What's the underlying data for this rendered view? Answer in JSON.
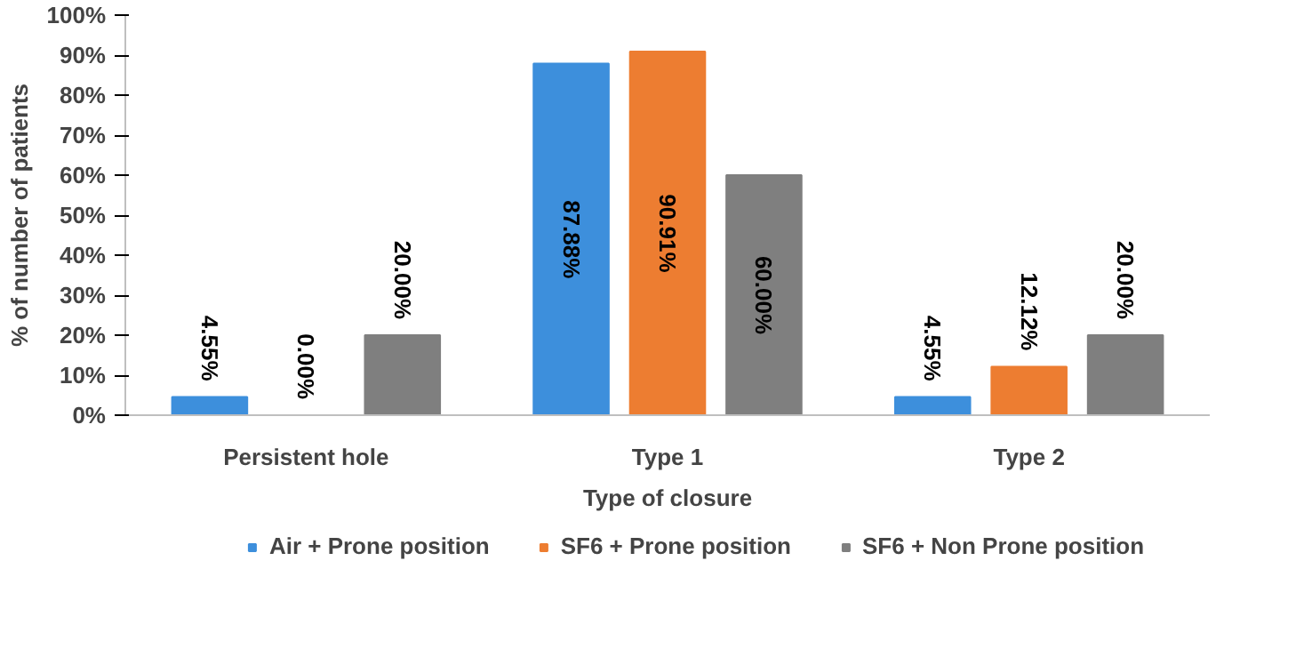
{
  "chart_data": {
    "type": "bar",
    "xlabel": "Type of closure",
    "ylabel": "% of number of patients",
    "categories": [
      "Persistent hole",
      "Type 1",
      "Type 2"
    ],
    "series": [
      {
        "name": "Air + Prone position",
        "color": "#3d8fdc",
        "values": [
          4.55,
          87.88,
          4.55
        ],
        "value_labels": [
          "4.55%",
          "87.88%",
          "4.55%"
        ]
      },
      {
        "name": "SF6 + Prone position",
        "color": "#ed7d31",
        "values": [
          0.0,
          90.91,
          12.12
        ],
        "value_labels": [
          "0.00%",
          "90.91%",
          "12.12%"
        ]
      },
      {
        "name": "SF6 + Non Prone position",
        "color": "#7f7f7f",
        "values": [
          20.0,
          60.0,
          20.0
        ],
        "value_labels": [
          "20.00%",
          "60.00%",
          "20.00%"
        ]
      }
    ],
    "ylim": [
      0,
      100
    ],
    "yticks": [
      {
        "value": 0,
        "label": "0%"
      },
      {
        "value": 10,
        "label": "10%"
      },
      {
        "value": 20,
        "label": "20%"
      },
      {
        "value": 30,
        "label": "30%"
      },
      {
        "value": 40,
        "label": "40%"
      },
      {
        "value": 50,
        "label": "50%"
      },
      {
        "value": 60,
        "label": "60%"
      },
      {
        "value": 70,
        "label": "70%"
      },
      {
        "value": 80,
        "label": "80%"
      },
      {
        "value": 90,
        "label": "90%"
      },
      {
        "value": 100,
        "label": "100%"
      }
    ],
    "grid": false,
    "legend": "bottom"
  }
}
